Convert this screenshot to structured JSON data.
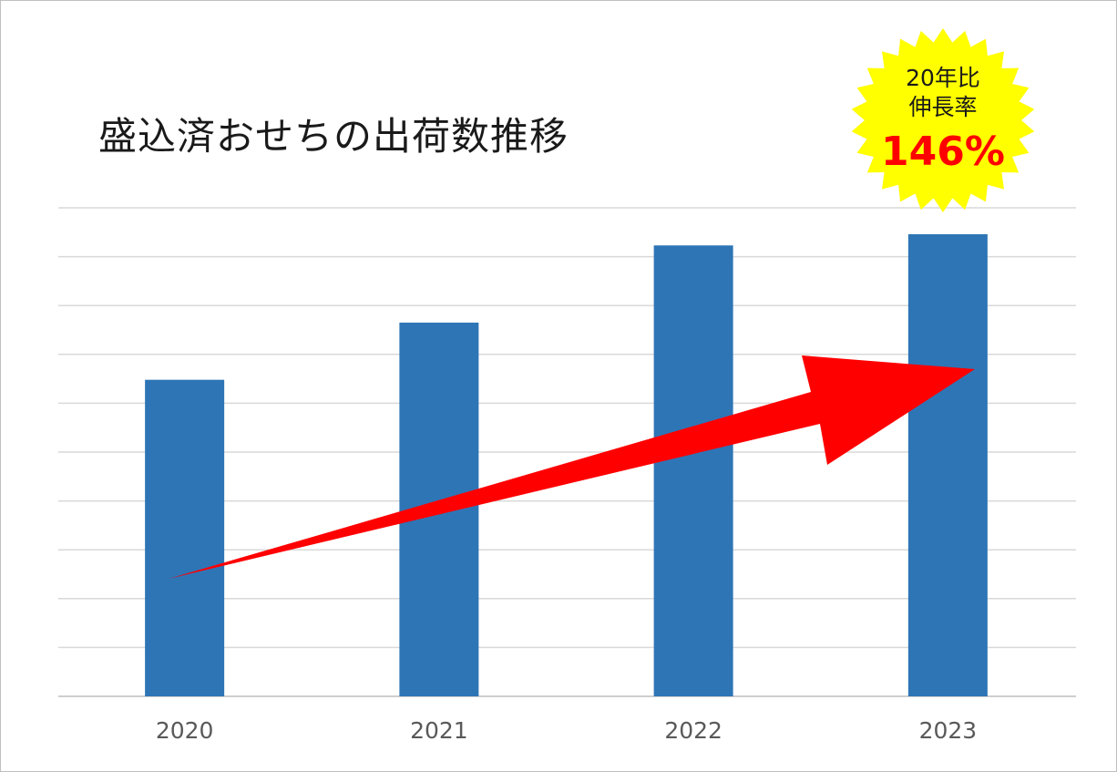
{
  "chart_data": {
    "type": "bar",
    "title": "盛込済おせちの出荷数推移",
    "categories": [
      "2020",
      "2021",
      "2022",
      "2023"
    ],
    "values": [
      64.8,
      76.5,
      92.3,
      94.6
    ],
    "ylim": [
      0,
      100
    ],
    "grid": true,
    "gridlines": 10,
    "xlabel": "",
    "ylabel": "",
    "bar_color": "#2e75b6",
    "trend_arrow_color": "#ff0000",
    "callout": {
      "line1": "20年比",
      "line2": "伸長率",
      "value": "146%",
      "burst_color": "#ffff00",
      "value_color": "#ff0000"
    }
  }
}
